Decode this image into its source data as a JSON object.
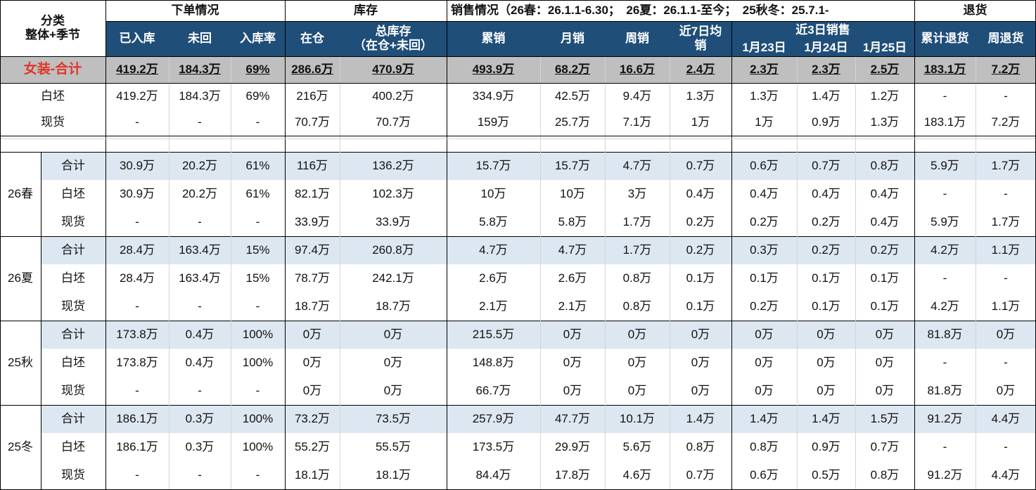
{
  "header": {
    "category": "分类",
    "category_sub": "整体+季节",
    "groups": [
      "下单情况",
      "库存",
      "销售情况（26春：26.1.1-6.30；　26夏：26.1.1-至今；　25秋冬：25.7.1-",
      "退货"
    ],
    "recent3": "近3日销售",
    "columns": [
      "已入库",
      "未回",
      "入库率",
      "在仓",
      "总库存\n（在仓+未回）",
      "累销",
      "月销",
      "周销",
      "近7日均销",
      "1月23日",
      "1月24日",
      "1月25日",
      "累计退货",
      "周退货"
    ]
  },
  "total_row": {
    "label": "女装-合计",
    "cells": [
      "419.2万",
      "184.3万",
      "69%",
      "286.6万",
      "470.9万",
      "493.9万",
      "68.2万",
      "16.6万",
      "2.4万",
      "2.3万",
      "2.3万",
      "2.5万",
      "183.1万",
      "7.2万"
    ]
  },
  "overall_rows": [
    {
      "label": "白坯",
      "cells": [
        "419.2万",
        "184.3万",
        "69%",
        "216万",
        "400.2万",
        "334.9万",
        "42.5万",
        "9.4万",
        "1.3万",
        "1.3万",
        "1.4万",
        "1.2万",
        "-",
        "-"
      ]
    },
    {
      "label": "现货",
      "cells": [
        "-",
        "-",
        "-",
        "70.7万",
        "70.7万",
        "159万",
        "25.7万",
        "7.1万",
        "1万",
        "1万",
        "0.9万",
        "1.3万",
        "183.1万",
        "7.2万"
      ]
    }
  ],
  "seasons": [
    {
      "name": "26春",
      "rows": [
        {
          "label": "合计",
          "cells": [
            "30.9万",
            "20.2万",
            "61%",
            "116万",
            "136.2万",
            "15.7万",
            "15.7万",
            "4.7万",
            "0.7万",
            "0.6万",
            "0.7万",
            "0.8万",
            "5.9万",
            "1.7万"
          ]
        },
        {
          "label": "白坯",
          "cells": [
            "30.9万",
            "20.2万",
            "61%",
            "82.1万",
            "102.3万",
            "10万",
            "10万",
            "3万",
            "0.4万",
            "0.4万",
            "0.4万",
            "0.4万",
            "-",
            "-"
          ]
        },
        {
          "label": "现货",
          "cells": [
            "-",
            "-",
            "-",
            "33.9万",
            "33.9万",
            "5.8万",
            "5.8万",
            "1.7万",
            "0.2万",
            "0.2万",
            "0.2万",
            "0.4万",
            "5.9万",
            "1.7万"
          ]
        }
      ]
    },
    {
      "name": "26夏",
      "rows": [
        {
          "label": "合计",
          "cells": [
            "28.4万",
            "163.4万",
            "15%",
            "97.4万",
            "260.8万",
            "4.7万",
            "4.7万",
            "1.7万",
            "0.2万",
            "0.3万",
            "0.2万",
            "0.2万",
            "4.2万",
            "1.1万"
          ]
        },
        {
          "label": "白坯",
          "cells": [
            "28.4万",
            "163.4万",
            "15%",
            "78.7万",
            "242.1万",
            "2.6万",
            "2.6万",
            "0.8万",
            "0.1万",
            "0.1万",
            "0.1万",
            "0.1万",
            "-",
            "-"
          ]
        },
        {
          "label": "现货",
          "cells": [
            "-",
            "-",
            "-",
            "18.7万",
            "18.7万",
            "2.1万",
            "2.1万",
            "0.8万",
            "0.1万",
            "0.2万",
            "0.1万",
            "0.1万",
            "4.2万",
            "1.1万"
          ]
        }
      ]
    },
    {
      "name": "25秋",
      "rows": [
        {
          "label": "合计",
          "cells": [
            "173.8万",
            "0.4万",
            "100%",
            "0万",
            "0万",
            "215.5万",
            "0万",
            "0万",
            "0万",
            "0万",
            "0万",
            "0万",
            "81.8万",
            "0万"
          ]
        },
        {
          "label": "白坯",
          "cells": [
            "173.8万",
            "0.4万",
            "100%",
            "0万",
            "0万",
            "148.8万",
            "0万",
            "0万",
            "0万",
            "0万",
            "0万",
            "0万",
            "-",
            "-"
          ]
        },
        {
          "label": "现货",
          "cells": [
            "-",
            "-",
            "-",
            "0万",
            "0万",
            "66.7万",
            "0万",
            "0万",
            "0万",
            "0万",
            "0万",
            "0万",
            "81.8万",
            "0万"
          ]
        }
      ]
    },
    {
      "name": "25冬",
      "rows": [
        {
          "label": "合计",
          "cells": [
            "186.1万",
            "0.3万",
            "100%",
            "73.2万",
            "73.5万",
            "257.9万",
            "47.7万",
            "10.1万",
            "1.4万",
            "1.4万",
            "1.4万",
            "1.5万",
            "91.2万",
            "4.4万"
          ]
        },
        {
          "label": "白坯",
          "cells": [
            "186.1万",
            "0.3万",
            "100%",
            "55.2万",
            "55.5万",
            "173.5万",
            "29.9万",
            "5.6万",
            "0.8万",
            "0.8万",
            "0.9万",
            "0.7万",
            "-",
            "-"
          ]
        },
        {
          "label": "现货",
          "cells": [
            "-",
            "-",
            "-",
            "18.1万",
            "18.1万",
            "84.4万",
            "17.8万",
            "4.6万",
            "0.7万",
            "0.6万",
            "0.5万",
            "0.8万",
            "91.2万",
            "4.4万"
          ]
        }
      ]
    }
  ]
}
